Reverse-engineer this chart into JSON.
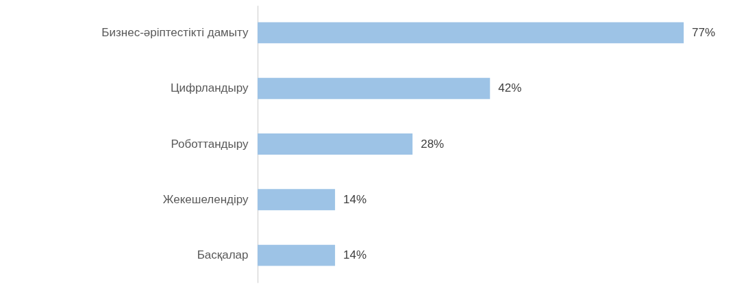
{
  "chart_data": {
    "type": "bar",
    "orientation": "horizontal",
    "categories": [
      "Бизнес-әріптестікті дамыту",
      "Цифрландыру",
      "Роботтандыру",
      "Жекешелендіру",
      "Басқалар"
    ],
    "values": [
      77,
      42,
      28,
      14,
      14
    ],
    "value_labels": [
      "77%",
      "42%",
      "28%",
      "14%",
      "14%"
    ],
    "color": "#9dc3e6"
  }
}
